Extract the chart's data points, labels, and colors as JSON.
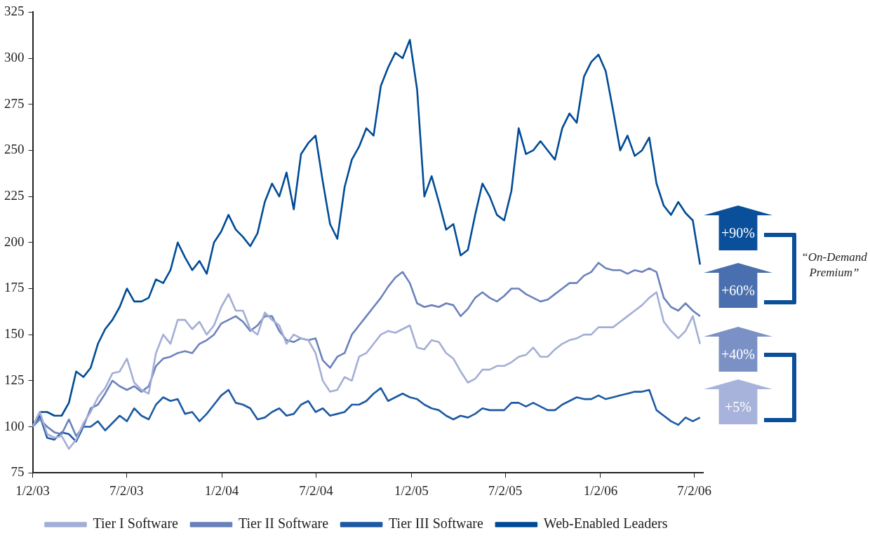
{
  "chart_data": {
    "type": "line",
    "x": [
      "2003-01-02",
      "2003-01-16",
      "2003-01-30",
      "2003-02-13",
      "2003-02-27",
      "2003-03-13",
      "2003-03-27",
      "2003-04-10",
      "2003-04-24",
      "2003-05-08",
      "2003-05-22",
      "2003-06-05",
      "2003-06-19",
      "2003-07-03",
      "2003-07-17",
      "2003-07-31",
      "2003-08-14",
      "2003-08-28",
      "2003-09-11",
      "2003-09-25",
      "2003-10-09",
      "2003-10-23",
      "2003-11-06",
      "2003-11-20",
      "2003-12-04",
      "2003-12-18",
      "2004-01-01",
      "2004-01-15",
      "2004-01-29",
      "2004-02-12",
      "2004-02-26",
      "2004-03-11",
      "2004-03-25",
      "2004-04-08",
      "2004-04-22",
      "2004-05-06",
      "2004-05-20",
      "2004-06-03",
      "2004-06-17",
      "2004-07-01",
      "2004-07-15",
      "2004-07-29",
      "2004-08-12",
      "2004-08-26",
      "2004-09-09",
      "2004-09-23",
      "2004-10-07",
      "2004-10-21",
      "2004-11-04",
      "2004-11-18",
      "2004-12-02",
      "2004-12-16",
      "2004-12-30",
      "2005-01-13",
      "2005-01-27",
      "2005-02-10",
      "2005-02-24",
      "2005-03-10",
      "2005-03-24",
      "2005-04-07",
      "2005-04-21",
      "2005-05-05",
      "2005-05-19",
      "2005-06-02",
      "2005-06-16",
      "2005-06-30",
      "2005-07-14",
      "2005-07-28",
      "2005-08-11",
      "2005-08-25",
      "2005-09-08",
      "2005-09-22",
      "2005-10-06",
      "2005-10-20",
      "2005-11-03",
      "2005-11-17",
      "2005-12-01",
      "2005-12-15",
      "2005-12-29",
      "2006-01-12",
      "2006-01-26",
      "2006-02-09",
      "2006-02-23",
      "2006-03-09",
      "2006-03-23",
      "2006-04-06",
      "2006-04-20",
      "2006-05-04",
      "2006-05-18",
      "2006-06-01",
      "2006-06-15",
      "2006-06-29",
      "2006-07-13"
    ],
    "xlim": [
      "2003-01-02",
      "2006-07-20"
    ],
    "xticks": [
      {
        "value": "2003-01-02",
        "label": "1/2/03"
      },
      {
        "value": "2003-07-02",
        "label": "7/2/03"
      },
      {
        "value": "2004-01-02",
        "label": "1/2/04"
      },
      {
        "value": "2004-07-02",
        "label": "7/2/04"
      },
      {
        "value": "2005-01-02",
        "label": "1/2/05"
      },
      {
        "value": "2005-07-02",
        "label": "7/2/05"
      },
      {
        "value": "2006-01-02",
        "label": "1/2/06"
      },
      {
        "value": "2006-07-02",
        "label": "7/2/06"
      }
    ],
    "ylim": [
      75,
      325
    ],
    "yticks": [
      75,
      100,
      125,
      150,
      175,
      200,
      225,
      250,
      275,
      300,
      325
    ],
    "grid": false,
    "legend": "bottom",
    "marker": "none",
    "line_style": "solid",
    "series": [
      {
        "name": "Tier I Software",
        "color": "#a3aed6",
        "values": [
          100,
          108,
          96,
          94,
          95,
          88,
          93,
          102,
          108,
          116,
          121,
          129,
          130,
          137,
          124,
          120,
          118,
          140,
          150,
          145,
          158,
          158,
          153,
          157,
          150,
          155,
          165,
          172,
          163,
          163,
          153,
          150,
          162,
          158,
          155,
          145,
          150,
          148,
          147,
          140,
          125,
          119,
          120,
          127,
          125,
          138,
          140,
          145,
          150,
          152,
          151,
          153,
          155,
          143,
          142,
          147,
          146,
          140,
          137,
          130,
          124,
          126,
          131,
          131,
          133,
          133,
          135,
          138,
          139,
          143,
          138,
          138,
          142,
          145,
          147,
          148,
          150,
          150,
          154,
          154,
          154,
          157,
          160,
          163,
          166,
          170,
          173,
          157,
          152,
          148,
          152,
          160,
          145
        ]
      },
      {
        "name": "Tier II Software",
        "color": "#6a81bb",
        "values": [
          100,
          104,
          100,
          97,
          96,
          104,
          95,
          100,
          110,
          112,
          118,
          125,
          122,
          120,
          122,
          119,
          122,
          133,
          137,
          138,
          140,
          141,
          140,
          145,
          147,
          150,
          156,
          158,
          160,
          157,
          152,
          155,
          160,
          160,
          152,
          147,
          146,
          148,
          147,
          148,
          136,
          132,
          138,
          140,
          150,
          155,
          160,
          165,
          170,
          176,
          181,
          184,
          178,
          167,
          165,
          166,
          165,
          167,
          166,
          160,
          164,
          170,
          173,
          170,
          168,
          171,
          175,
          175,
          172,
          170,
          168,
          169,
          172,
          175,
          178,
          178,
          182,
          184,
          189,
          186,
          185,
          185,
          183,
          185,
          184,
          186,
          184,
          170,
          165,
          163,
          167,
          163,
          160
        ]
      },
      {
        "name": "Tier III Software",
        "color": "#1d5aa3",
        "values": [
          100,
          106,
          94,
          93,
          97,
          96,
          92,
          100,
          100,
          103,
          98,
          102,
          106,
          103,
          110,
          106,
          104,
          112,
          116,
          114,
          115,
          107,
          108,
          103,
          107,
          112,
          117,
          120,
          113,
          112,
          110,
          104,
          105,
          108,
          110,
          106,
          107,
          112,
          114,
          108,
          110,
          106,
          107,
          108,
          112,
          112,
          114,
          118,
          121,
          114,
          116,
          118,
          116,
          115,
          112,
          110,
          109,
          106,
          104,
          106,
          105,
          107,
          110,
          109,
          109,
          109,
          113,
          113,
          111,
          113,
          111,
          109,
          109,
          112,
          114,
          116,
          115,
          115,
          117,
          115,
          116,
          117,
          118,
          119,
          119,
          120,
          109,
          106,
          103,
          101,
          105,
          103,
          105
        ]
      },
      {
        "name": "Web-Enabled Leaders",
        "color": "#004b96",
        "values": [
          100,
          108,
          108,
          106,
          106,
          113,
          130,
          127,
          132,
          145,
          153,
          158,
          165,
          175,
          168,
          168,
          170,
          180,
          178,
          185,
          200,
          192,
          185,
          190,
          183,
          200,
          206,
          215,
          207,
          203,
          198,
          205,
          222,
          232,
          225,
          238,
          218,
          248,
          254,
          258,
          233,
          210,
          202,
          230,
          245,
          252,
          262,
          258,
          285,
          295,
          303,
          300,
          310,
          283,
          225,
          236,
          222,
          207,
          210,
          193,
          196,
          215,
          232,
          225,
          215,
          212,
          228,
          262,
          248,
          250,
          255,
          250,
          245,
          262,
          270,
          265,
          290,
          298,
          302,
          293,
          272,
          250,
          258,
          247,
          250,
          257,
          232,
          220,
          215,
          222,
          216,
          212,
          188
        ]
      }
    ],
    "annotations": [
      "+90%",
      "+60%",
      "+40%",
      "+5%",
      "“On-Demand Premium”"
    ]
  }
}
